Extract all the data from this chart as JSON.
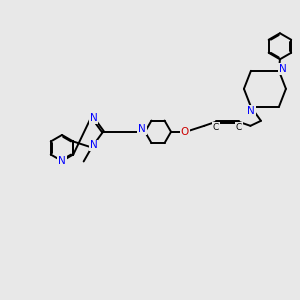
{
  "bg_color": "#e8e8e8",
  "bond_color": "#000000",
  "N_color": "#0000ff",
  "O_color": "#cc0000",
  "line_width": 1.4,
  "dbo": 0.012,
  "figsize": [
    3.0,
    3.0
  ],
  "dpi": 100,
  "xlim": [
    0,
    3.0
  ],
  "ylim": [
    0,
    3.0
  ]
}
